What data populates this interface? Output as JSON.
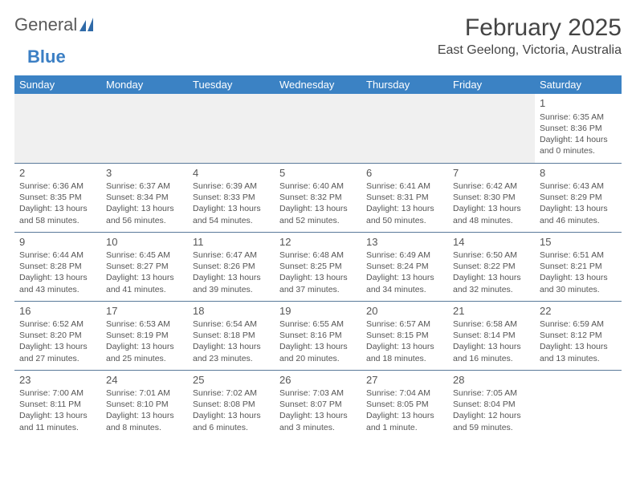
{
  "logo": {
    "text1": "General",
    "text2": "Blue"
  },
  "title": "February 2025",
  "location": "East Geelong, Victoria, Australia",
  "header_bg": "#3b82c4",
  "header_fg": "#ffffff",
  "days": [
    "Sunday",
    "Monday",
    "Tuesday",
    "Wednesday",
    "Thursday",
    "Friday",
    "Saturday"
  ],
  "weeks": [
    [
      {
        "n": "",
        "sr": "",
        "ss": "",
        "d1": "",
        "d2": ""
      },
      {
        "n": "",
        "sr": "",
        "ss": "",
        "d1": "",
        "d2": ""
      },
      {
        "n": "",
        "sr": "",
        "ss": "",
        "d1": "",
        "d2": ""
      },
      {
        "n": "",
        "sr": "",
        "ss": "",
        "d1": "",
        "d2": ""
      },
      {
        "n": "",
        "sr": "",
        "ss": "",
        "d1": "",
        "d2": ""
      },
      {
        "n": "",
        "sr": "",
        "ss": "",
        "d1": "",
        "d2": ""
      },
      {
        "n": "1",
        "sr": "Sunrise: 6:35 AM",
        "ss": "Sunset: 8:36 PM",
        "d1": "Daylight: 14 hours",
        "d2": "and 0 minutes."
      }
    ],
    [
      {
        "n": "2",
        "sr": "Sunrise: 6:36 AM",
        "ss": "Sunset: 8:35 PM",
        "d1": "Daylight: 13 hours",
        "d2": "and 58 minutes."
      },
      {
        "n": "3",
        "sr": "Sunrise: 6:37 AM",
        "ss": "Sunset: 8:34 PM",
        "d1": "Daylight: 13 hours",
        "d2": "and 56 minutes."
      },
      {
        "n": "4",
        "sr": "Sunrise: 6:39 AM",
        "ss": "Sunset: 8:33 PM",
        "d1": "Daylight: 13 hours",
        "d2": "and 54 minutes."
      },
      {
        "n": "5",
        "sr": "Sunrise: 6:40 AM",
        "ss": "Sunset: 8:32 PM",
        "d1": "Daylight: 13 hours",
        "d2": "and 52 minutes."
      },
      {
        "n": "6",
        "sr": "Sunrise: 6:41 AM",
        "ss": "Sunset: 8:31 PM",
        "d1": "Daylight: 13 hours",
        "d2": "and 50 minutes."
      },
      {
        "n": "7",
        "sr": "Sunrise: 6:42 AM",
        "ss": "Sunset: 8:30 PM",
        "d1": "Daylight: 13 hours",
        "d2": "and 48 minutes."
      },
      {
        "n": "8",
        "sr": "Sunrise: 6:43 AM",
        "ss": "Sunset: 8:29 PM",
        "d1": "Daylight: 13 hours",
        "d2": "and 46 minutes."
      }
    ],
    [
      {
        "n": "9",
        "sr": "Sunrise: 6:44 AM",
        "ss": "Sunset: 8:28 PM",
        "d1": "Daylight: 13 hours",
        "d2": "and 43 minutes."
      },
      {
        "n": "10",
        "sr": "Sunrise: 6:45 AM",
        "ss": "Sunset: 8:27 PM",
        "d1": "Daylight: 13 hours",
        "d2": "and 41 minutes."
      },
      {
        "n": "11",
        "sr": "Sunrise: 6:47 AM",
        "ss": "Sunset: 8:26 PM",
        "d1": "Daylight: 13 hours",
        "d2": "and 39 minutes."
      },
      {
        "n": "12",
        "sr": "Sunrise: 6:48 AM",
        "ss": "Sunset: 8:25 PM",
        "d1": "Daylight: 13 hours",
        "d2": "and 37 minutes."
      },
      {
        "n": "13",
        "sr": "Sunrise: 6:49 AM",
        "ss": "Sunset: 8:24 PM",
        "d1": "Daylight: 13 hours",
        "d2": "and 34 minutes."
      },
      {
        "n": "14",
        "sr": "Sunrise: 6:50 AM",
        "ss": "Sunset: 8:22 PM",
        "d1": "Daylight: 13 hours",
        "d2": "and 32 minutes."
      },
      {
        "n": "15",
        "sr": "Sunrise: 6:51 AM",
        "ss": "Sunset: 8:21 PM",
        "d1": "Daylight: 13 hours",
        "d2": "and 30 minutes."
      }
    ],
    [
      {
        "n": "16",
        "sr": "Sunrise: 6:52 AM",
        "ss": "Sunset: 8:20 PM",
        "d1": "Daylight: 13 hours",
        "d2": "and 27 minutes."
      },
      {
        "n": "17",
        "sr": "Sunrise: 6:53 AM",
        "ss": "Sunset: 8:19 PM",
        "d1": "Daylight: 13 hours",
        "d2": "and 25 minutes."
      },
      {
        "n": "18",
        "sr": "Sunrise: 6:54 AM",
        "ss": "Sunset: 8:18 PM",
        "d1": "Daylight: 13 hours",
        "d2": "and 23 minutes."
      },
      {
        "n": "19",
        "sr": "Sunrise: 6:55 AM",
        "ss": "Sunset: 8:16 PM",
        "d1": "Daylight: 13 hours",
        "d2": "and 20 minutes."
      },
      {
        "n": "20",
        "sr": "Sunrise: 6:57 AM",
        "ss": "Sunset: 8:15 PM",
        "d1": "Daylight: 13 hours",
        "d2": "and 18 minutes."
      },
      {
        "n": "21",
        "sr": "Sunrise: 6:58 AM",
        "ss": "Sunset: 8:14 PM",
        "d1": "Daylight: 13 hours",
        "d2": "and 16 minutes."
      },
      {
        "n": "22",
        "sr": "Sunrise: 6:59 AM",
        "ss": "Sunset: 8:12 PM",
        "d1": "Daylight: 13 hours",
        "d2": "and 13 minutes."
      }
    ],
    [
      {
        "n": "23",
        "sr": "Sunrise: 7:00 AM",
        "ss": "Sunset: 8:11 PM",
        "d1": "Daylight: 13 hours",
        "d2": "and 11 minutes."
      },
      {
        "n": "24",
        "sr": "Sunrise: 7:01 AM",
        "ss": "Sunset: 8:10 PM",
        "d1": "Daylight: 13 hours",
        "d2": "and 8 minutes."
      },
      {
        "n": "25",
        "sr": "Sunrise: 7:02 AM",
        "ss": "Sunset: 8:08 PM",
        "d1": "Daylight: 13 hours",
        "d2": "and 6 minutes."
      },
      {
        "n": "26",
        "sr": "Sunrise: 7:03 AM",
        "ss": "Sunset: 8:07 PM",
        "d1": "Daylight: 13 hours",
        "d2": "and 3 minutes."
      },
      {
        "n": "27",
        "sr": "Sunrise: 7:04 AM",
        "ss": "Sunset: 8:05 PM",
        "d1": "Daylight: 13 hours",
        "d2": "and 1 minute."
      },
      {
        "n": "28",
        "sr": "Sunrise: 7:05 AM",
        "ss": "Sunset: 8:04 PM",
        "d1": "Daylight: 12 hours",
        "d2": "and 59 minutes."
      },
      {
        "n": "",
        "sr": "",
        "ss": "",
        "d1": "",
        "d2": ""
      }
    ]
  ]
}
